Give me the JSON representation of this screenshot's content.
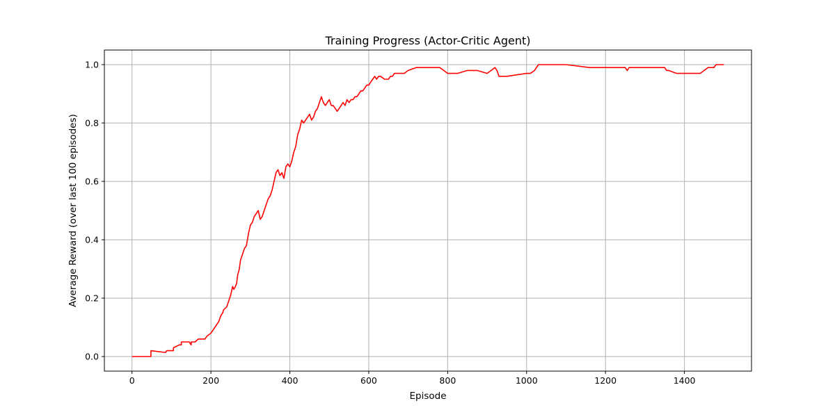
{
  "chart_data": {
    "type": "line",
    "title": "Training Progress (Actor-Critic Agent)",
    "xlabel": "Episode",
    "ylabel": "Average Reward (over last 100 episodes)",
    "xlim": [
      -70,
      1570
    ],
    "ylim": [
      -0.05,
      1.05
    ],
    "xticks": [
      0,
      200,
      400,
      600,
      800,
      1000,
      1200,
      1400
    ],
    "yticks": [
      0.0,
      0.2,
      0.4,
      0.6,
      0.8,
      1.0
    ],
    "xtick_labels": [
      "0",
      "200",
      "400",
      "600",
      "800",
      "1000",
      "1200",
      "1400"
    ],
    "ytick_labels": [
      "0.0",
      "0.2",
      "0.4",
      "0.6",
      "0.8",
      "1.0"
    ],
    "grid": true,
    "series": [
      {
        "color": "#ff0000",
        "x": [
          0,
          48,
          48,
          60,
          85,
          88,
          88,
          105,
          105,
          120,
          125,
          125,
          140,
          145,
          150,
          150,
          160,
          160,
          168,
          168,
          185,
          190,
          190,
          200,
          200,
          205,
          210,
          210,
          220,
          225,
          230,
          232,
          240,
          245,
          250,
          255,
          258,
          262,
          265,
          268,
          272,
          275,
          280,
          285,
          290,
          295,
          300,
          305,
          310,
          315,
          320,
          325,
          330,
          335,
          340,
          345,
          350,
          355,
          360,
          365,
          370,
          375,
          380,
          385,
          390,
          395,
          400,
          405,
          410,
          415,
          420,
          425,
          430,
          435,
          440,
          445,
          450,
          455,
          460,
          465,
          470,
          475,
          480,
          485,
          490,
          495,
          500,
          505,
          510,
          515,
          520,
          525,
          530,
          535,
          540,
          545,
          550,
          555,
          560,
          565,
          570,
          575,
          580,
          585,
          590,
          595,
          600,
          605,
          610,
          615,
          620,
          625,
          630,
          640,
          650,
          655,
          660,
          665,
          670,
          680,
          690,
          700,
          720,
          740,
          760,
          770,
          780,
          790,
          800,
          820,
          825,
          850,
          870,
          875,
          900,
          910,
          920,
          925,
          930,
          935,
          950,
          1000,
          1010,
          1020,
          1030,
          1040,
          1050,
          1100,
          1160,
          1165,
          1250,
          1255,
          1260,
          1300,
          1350,
          1355,
          1360,
          1380,
          1400,
          1440,
          1450,
          1460,
          1470,
          1475,
          1480,
          1500
        ],
        "y": [
          0.0,
          0.0,
          0.02,
          0.018,
          0.014,
          0.02,
          0.02,
          0.02,
          0.03,
          0.04,
          0.04,
          0.05,
          0.05,
          0.05,
          0.04,
          0.05,
          0.05,
          0.05,
          0.06,
          0.06,
          0.06,
          0.07,
          0.07,
          0.08,
          0.08,
          0.09,
          0.1,
          0.1,
          0.12,
          0.14,
          0.15,
          0.16,
          0.17,
          0.19,
          0.21,
          0.24,
          0.23,
          0.24,
          0.25,
          0.28,
          0.3,
          0.33,
          0.35,
          0.37,
          0.38,
          0.42,
          0.45,
          0.46,
          0.48,
          0.49,
          0.5,
          0.47,
          0.48,
          0.5,
          0.52,
          0.54,
          0.55,
          0.57,
          0.6,
          0.63,
          0.64,
          0.62,
          0.63,
          0.61,
          0.65,
          0.66,
          0.65,
          0.67,
          0.7,
          0.72,
          0.76,
          0.78,
          0.81,
          0.8,
          0.81,
          0.82,
          0.83,
          0.81,
          0.82,
          0.84,
          0.85,
          0.87,
          0.89,
          0.87,
          0.86,
          0.87,
          0.88,
          0.86,
          0.86,
          0.85,
          0.84,
          0.85,
          0.86,
          0.87,
          0.86,
          0.88,
          0.87,
          0.88,
          0.88,
          0.89,
          0.89,
          0.9,
          0.91,
          0.91,
          0.92,
          0.93,
          0.93,
          0.94,
          0.95,
          0.96,
          0.95,
          0.96,
          0.96,
          0.95,
          0.95,
          0.96,
          0.96,
          0.97,
          0.97,
          0.97,
          0.97,
          0.98,
          0.99,
          0.99,
          0.99,
          0.99,
          0.99,
          0.98,
          0.97,
          0.97,
          0.97,
          0.98,
          0.98,
          0.98,
          0.97,
          0.98,
          0.99,
          0.98,
          0.96,
          0.96,
          0.96,
          0.97,
          0.97,
          0.98,
          1.0,
          1.0,
          1.0,
          1.0,
          0.99,
          0.99,
          0.99,
          0.98,
          0.99,
          0.99,
          0.99,
          0.98,
          0.98,
          0.97,
          0.97,
          0.97,
          0.98,
          0.99,
          0.99,
          0.99,
          1.0,
          1.0
        ]
      }
    ]
  }
}
